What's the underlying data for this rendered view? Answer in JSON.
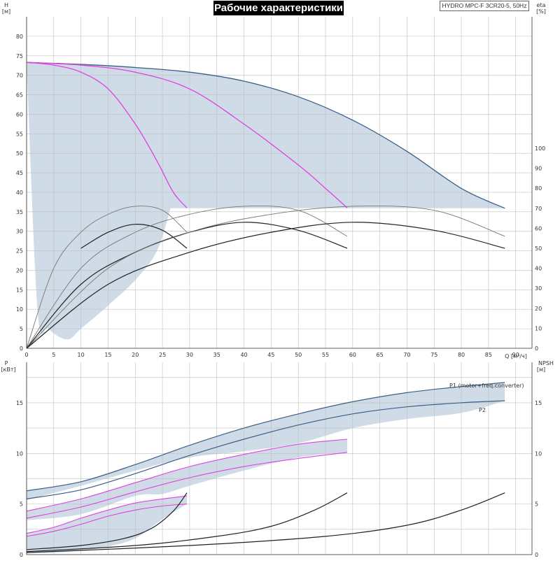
{
  "title": "Рабочие характеристики",
  "model": "HYDRO MPC-F 3CR20-5, 50Hz",
  "chart_data": [
    {
      "type": "line",
      "name": "head_efficiency",
      "xlabel": "Q [м³/ч]",
      "ylabel_left_symbol": "H",
      "ylabel_left_unit": "[м]",
      "ylabel_right_symbol": "eta",
      "ylabel_right_unit": "[%]",
      "xlim": [
        0,
        93
      ],
      "ylim_left": [
        0,
        85
      ],
      "ylim_right_equiv": [
        0,
        100
      ],
      "x_ticks": [
        0,
        5,
        10,
        15,
        20,
        25,
        30,
        35,
        40,
        45,
        50,
        55,
        60,
        65,
        70,
        75,
        80,
        85,
        90
      ],
      "y_left_ticks": [
        0,
        5,
        10,
        15,
        20,
        25,
        30,
        35,
        40,
        45,
        50,
        55,
        60,
        65,
        70,
        75,
        80
      ],
      "y_right_ticks": [
        0,
        10,
        20,
        30,
        40,
        50,
        60,
        70,
        80,
        90,
        100
      ],
      "grid": true,
      "operating_region": {
        "upper_q": [
          0,
          10,
          20,
          30,
          40,
          50,
          60,
          70,
          80,
          88
        ],
        "upper_h": [
          73.3,
          72.8,
          72.0,
          70.8,
          68.5,
          64.5,
          58.5,
          50.5,
          41.0,
          35.9
        ],
        "floor_h": 35.9,
        "floor_q": [
          26.5,
          88
        ],
        "lower_q": [
          0,
          2,
          4,
          7.5,
          10,
          15,
          20,
          24,
          26.5
        ],
        "lower_h": [
          73.3,
          10.0,
          5.0,
          2.3,
          5.0,
          11.0,
          17.5,
          25.0,
          35.9
        ]
      },
      "pump_curves_h": [
        {
          "q": [
            0,
            5,
            10,
            15,
            20,
            24,
            27,
            29.5
          ],
          "h": [
            73.3,
            72.6,
            70.8,
            66.5,
            57.5,
            48.0,
            40.0,
            36.0
          ]
        },
        {
          "q": [
            0,
            10,
            20,
            30,
            40,
            50,
            55,
            59
          ],
          "h": [
            73.3,
            72.6,
            70.8,
            66.5,
            57.5,
            47.0,
            41.0,
            36.0
          ]
        }
      ],
      "efficiency_curves": [
        {
          "q": [
            0,
            5,
            10,
            15,
            20,
            25,
            29.5
          ],
          "eta": [
            0,
            40,
            58,
            67,
            71,
            69,
            58
          ],
          "style": "light"
        },
        {
          "q": [
            10,
            15,
            20,
            25,
            29.5
          ],
          "eta": [
            50,
            58,
            62,
            59,
            50
          ],
          "style": "dark"
        },
        {
          "q": [
            0,
            10,
            20,
            30,
            40,
            50,
            59
          ],
          "eta": [
            0,
            40,
            58,
            67,
            71,
            69,
            56
          ],
          "style": "light"
        },
        {
          "q": [
            0,
            10,
            20,
            30,
            40,
            50,
            59
          ],
          "eta": [
            0,
            32,
            48,
            58,
            63,
            59,
            50
          ],
          "style": "dark"
        },
        {
          "q": [
            0,
            15,
            30,
            45,
            60,
            75,
            88
          ],
          "eta": [
            0,
            40,
            58,
            67,
            71,
            69,
            56
          ],
          "style": "light"
        },
        {
          "q": [
            0,
            15,
            30,
            45,
            60,
            75,
            88
          ],
          "eta": [
            0,
            32,
            48,
            58,
            63,
            59,
            50
          ],
          "style": "dark"
        }
      ]
    },
    {
      "type": "line",
      "name": "power_npsh",
      "ylabel_left_symbol": "P",
      "ylabel_left_unit": "[кВт]",
      "ylabel_right_symbol": "NPSH",
      "ylabel_right_unit": "[м]",
      "xlim": [
        0,
        93
      ],
      "ylim": [
        0,
        19
      ],
      "y_left_ticks": [
        0,
        5,
        10,
        15
      ],
      "y_right_ticks": [
        0,
        5,
        10,
        15
      ],
      "grid": true,
      "series": [
        {
          "name": "P1 (motor+freq.converter)",
          "q": [
            0,
            10,
            20,
            30,
            40,
            50,
            60,
            70,
            80,
            88
          ],
          "p": [
            6.3,
            7.2,
            8.9,
            10.8,
            12.5,
            13.9,
            15.1,
            16.0,
            16.6,
            17.0
          ],
          "style": "main"
        },
        {
          "name": "P2",
          "q": [
            0,
            10,
            20,
            30,
            40,
            50,
            60,
            70,
            80,
            88
          ],
          "p": [
            5.5,
            6.4,
            8.0,
            9.8,
            11.4,
            12.8,
            13.9,
            14.6,
            15.0,
            15.2
          ],
          "style": "main"
        },
        {
          "q": [
            0,
            10,
            20,
            30,
            40,
            50,
            59
          ],
          "p": [
            4.3,
            5.5,
            7.1,
            8.7,
            9.9,
            10.9,
            11.4
          ],
          "style": "magenta"
        },
        {
          "q": [
            0,
            10,
            20,
            30,
            40,
            50,
            59
          ],
          "p": [
            3.6,
            4.7,
            6.2,
            7.6,
            8.7,
            9.5,
            10.1
          ],
          "style": "magenta"
        },
        {
          "q": [
            0,
            5,
            10,
            15,
            20,
            25,
            29.5
          ],
          "p": [
            2.1,
            2.7,
            3.6,
            4.4,
            5.1,
            5.5,
            5.8
          ],
          "style": "magenta"
        },
        {
          "q": [
            0,
            5,
            10,
            15,
            20,
            25,
            29.5
          ],
          "p": [
            1.8,
            2.3,
            3.0,
            3.8,
            4.4,
            4.8,
            5.0
          ],
          "style": "magenta"
        }
      ],
      "npsh_curves": [
        {
          "q": [
            0,
            10,
            18,
            23,
            27,
            29.5
          ],
          "npsh": [
            0.5,
            0.9,
            1.6,
            2.6,
            4.3,
            6.1
          ]
        },
        {
          "q": [
            0,
            20,
            35,
            45,
            53,
            59
          ],
          "npsh": [
            0.3,
            0.9,
            1.8,
            2.8,
            4.4,
            6.1
          ]
        },
        {
          "q": [
            0,
            30,
            55,
            70,
            80,
            88
          ],
          "npsh": [
            0.2,
            0.9,
            1.8,
            2.9,
            4.4,
            6.1
          ]
        }
      ],
      "shade_bands": [
        {
          "upper_q": [
            0,
            10,
            20,
            30,
            40,
            50,
            60,
            70,
            80,
            88
          ],
          "upper_p": [
            6.3,
            7.2,
            8.9,
            10.8,
            12.5,
            13.9,
            15.1,
            16.0,
            16.6,
            17.0
          ],
          "lower_q": [
            88,
            80,
            70,
            60,
            50,
            40,
            30,
            20,
            10,
            0
          ],
          "lower_p": [
            15.2,
            14.0,
            13.4,
            12.5,
            11.0,
            10.2,
            9.6,
            8.3,
            6.8,
            5.4
          ]
        },
        {
          "upper_q": [
            0,
            10,
            20,
            30,
            40,
            50,
            59
          ],
          "upper_p": [
            4.3,
            5.5,
            7.1,
            8.7,
            9.9,
            10.9,
            11.4
          ],
          "lower_q": [
            59,
            50,
            40,
            30,
            25,
            20,
            10,
            0
          ],
          "lower_p": [
            10.1,
            9.6,
            8.3,
            6.8,
            6.0,
            5.8,
            4.0,
            3.4
          ]
        },
        {
          "upper_q": [
            0,
            5,
            10,
            15,
            20,
            25,
            29.5
          ],
          "upper_p": [
            2.1,
            2.7,
            3.6,
            4.4,
            5.1,
            5.5,
            5.8
          ],
          "lower_q": [
            29.5,
            25,
            20,
            15,
            10,
            5,
            0
          ],
          "lower_p": [
            5.0,
            3.5,
            1.6,
            0.8,
            0.4,
            0.2,
            0.2
          ]
        }
      ]
    }
  ]
}
